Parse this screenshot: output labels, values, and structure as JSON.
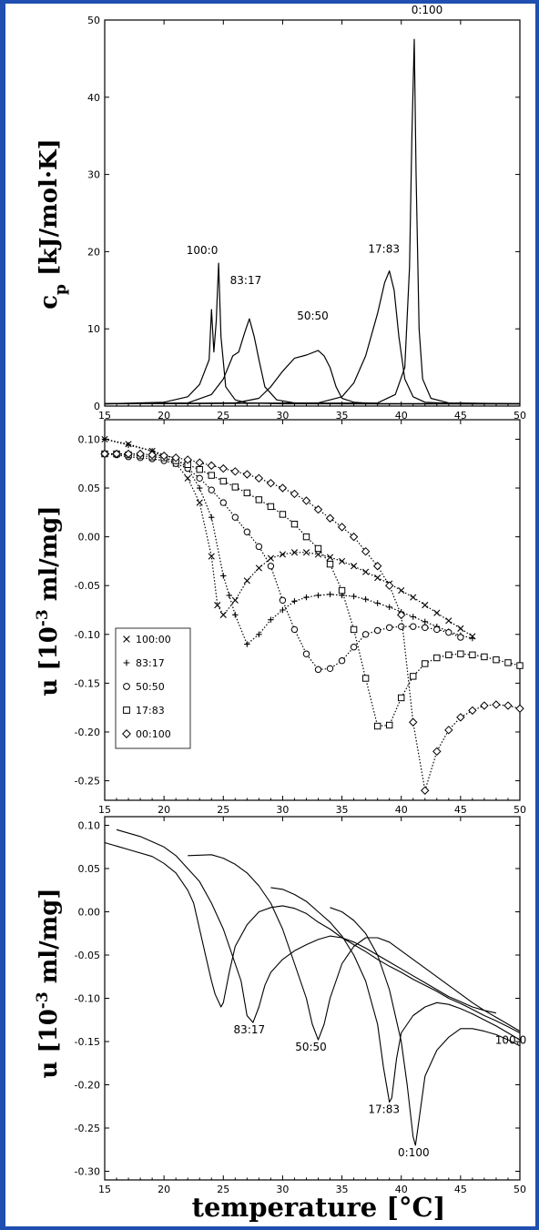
{
  "chart_data": [
    {
      "type": "line",
      "ylabel_main": "c",
      "ylabel_sub": "p",
      "ylabel_rest": " [kJ/mol·K]",
      "xlim": [
        15,
        50
      ],
      "ylim": [
        0,
        50
      ],
      "xticks": [
        "15",
        "20",
        "25",
        "30",
        "35",
        "40",
        "45",
        "50"
      ],
      "yticks": [
        "0",
        "10",
        "20",
        "30",
        "40",
        "50"
      ],
      "series": [
        {
          "name": "100:0",
          "x": [
            15,
            20,
            22,
            23,
            23.8,
            24.0,
            24.2,
            24.4,
            24.6,
            24.8,
            25.2,
            26,
            27,
            30,
            35,
            40,
            50
          ],
          "y": [
            0.3,
            0.5,
            1.2,
            2.8,
            6,
            12.5,
            7,
            11,
            18.5,
            9,
            2.5,
            0.8,
            0.4,
            0.3,
            0.3,
            0.3,
            0.3
          ]
        },
        {
          "name": "83:17",
          "x": [
            15,
            22,
            24,
            25,
            25.8,
            26.3,
            26.8,
            27.2,
            27.6,
            28,
            28.5,
            29.5,
            31,
            35,
            50
          ],
          "y": [
            0.3,
            0.4,
            1.5,
            3.5,
            6.5,
            7,
            9.5,
            11.3,
            9,
            6,
            2.5,
            0.8,
            0.4,
            0.3,
            0.3
          ]
        },
        {
          "name": "50:50",
          "x": [
            15,
            26,
            28,
            29,
            30,
            31,
            32,
            33,
            33.5,
            34,
            34.5,
            35,
            36,
            38,
            50
          ],
          "y": [
            0.3,
            0.4,
            1,
            2.5,
            4.5,
            6.2,
            6.6,
            7.2,
            6.5,
            5,
            2.5,
            1,
            0.5,
            0.3,
            0.3
          ]
        },
        {
          "name": "17:83",
          "x": [
            15,
            33,
            35,
            36,
            37,
            38,
            38.6,
            39,
            39.4,
            39.8,
            40.3,
            41,
            42,
            45,
            50
          ],
          "y": [
            0.3,
            0.4,
            1.2,
            3,
            6.5,
            12,
            16,
            17.5,
            15,
            9,
            3.5,
            1.2,
            0.5,
            0.3,
            0.3
          ]
        },
        {
          "name": "0:100",
          "x": [
            15,
            38,
            39.5,
            40.3,
            40.7,
            40.9,
            41.1,
            41.25,
            41.5,
            41.8,
            42.5,
            44,
            50
          ],
          "y": [
            0.3,
            0.4,
            1.5,
            5,
            18,
            35,
            47.5,
            30,
            10,
            3.5,
            1,
            0.4,
            0.3
          ]
        }
      ],
      "annotations": [
        "100:0",
        "83:17",
        "50:50",
        "17:83",
        "0:100"
      ]
    },
    {
      "type": "line",
      "ylabel_main": "u [10",
      "ylabel_sup": "-3",
      "ylabel_rest": " ml/mg]",
      "xlim": [
        15,
        50
      ],
      "ylim": [
        -0.27,
        0.12
      ],
      "xticks": [
        "15",
        "20",
        "25",
        "30",
        "35",
        "40",
        "45",
        "50"
      ],
      "yticks": [
        "-0.25",
        "-0.20",
        "-0.15",
        "-0.10",
        "-0.05",
        "0.00",
        "0.05",
        "0.10"
      ],
      "legend": "middle-left",
      "series": [
        {
          "name": "100:00",
          "marker": "x",
          "x": [
            15,
            17,
            19,
            21,
            22,
            23,
            24,
            24.5,
            25,
            26,
            27,
            28,
            29,
            30,
            31,
            32,
            33,
            34,
            35,
            36,
            37,
            38,
            39,
            40,
            41,
            42,
            43,
            44,
            45,
            46
          ],
          "y": [
            0.1,
            0.095,
            0.088,
            0.075,
            0.06,
            0.035,
            -0.02,
            -0.07,
            -0.08,
            -0.065,
            -0.045,
            -0.032,
            -0.022,
            -0.018,
            -0.016,
            -0.016,
            -0.018,
            -0.021,
            -0.025,
            -0.03,
            -0.036,
            -0.042,
            -0.048,
            -0.055,
            -0.062,
            -0.07,
            -0.078,
            -0.086,
            -0.094,
            -0.102
          ]
        },
        {
          "name": "83:17",
          "marker": "+",
          "x": [
            15,
            17,
            19,
            21,
            22,
            23,
            24,
            25,
            25.5,
            26,
            27,
            28,
            29,
            30,
            31,
            32,
            33,
            34,
            35,
            36,
            37,
            38,
            39,
            40,
            41,
            42,
            43,
            44,
            45,
            46
          ],
          "y": [
            0.1,
            0.094,
            0.088,
            0.08,
            0.07,
            0.05,
            0.02,
            -0.04,
            -0.06,
            -0.08,
            -0.11,
            -0.1,
            -0.085,
            -0.075,
            -0.066,
            -0.062,
            -0.06,
            -0.059,
            -0.06,
            -0.061,
            -0.064,
            -0.068,
            -0.072,
            -0.077,
            -0.082,
            -0.087,
            -0.092,
            -0.097,
            -0.101,
            -0.104
          ]
        },
        {
          "name": "50:50",
          "marker": "o",
          "x": [
            15,
            16,
            17,
            18,
            19,
            20,
            21,
            22,
            23,
            24,
            25,
            26,
            27,
            28,
            29,
            30,
            31,
            32,
            33,
            34,
            35,
            36,
            37,
            38,
            39,
            40,
            41,
            42,
            43,
            44,
            45
          ],
          "y": [
            0.085,
            0.084,
            0.082,
            0.081,
            0.08,
            0.078,
            0.075,
            0.07,
            0.06,
            0.048,
            0.035,
            0.02,
            0.005,
            -0.01,
            -0.03,
            -0.065,
            -0.095,
            -0.12,
            -0.136,
            -0.135,
            -0.127,
            -0.113,
            -0.1,
            -0.096,
            -0.093,
            -0.092,
            -0.092,
            -0.093,
            -0.095,
            -0.098,
            -0.103
          ]
        },
        {
          "name": "17:83",
          "marker": "s",
          "x": [
            15,
            16,
            17,
            18,
            19,
            20,
            21,
            22,
            23,
            24,
            25,
            26,
            27,
            28,
            29,
            30,
            31,
            32,
            33,
            34,
            35,
            36,
            37,
            38,
            39,
            40,
            41,
            42,
            43,
            44,
            45,
            46,
            47,
            48,
            49,
            50
          ],
          "y": [
            0.085,
            0.085,
            0.084,
            0.083,
            0.082,
            0.081,
            0.078,
            0.074,
            0.069,
            0.063,
            0.057,
            0.051,
            0.045,
            0.038,
            0.031,
            0.023,
            0.013,
            0.0,
            -0.012,
            -0.028,
            -0.055,
            -0.095,
            -0.145,
            -0.194,
            -0.193,
            -0.165,
            -0.143,
            -0.13,
            -0.124,
            -0.121,
            -0.12,
            -0.121,
            -0.123,
            -0.126,
            -0.129,
            -0.132
          ]
        },
        {
          "name": "00:100",
          "marker": "d",
          "x": [
            15,
            16,
            17,
            18,
            19,
            20,
            21,
            22,
            23,
            24,
            25,
            26,
            27,
            28,
            29,
            30,
            31,
            32,
            33,
            34,
            35,
            36,
            37,
            38,
            39,
            40,
            41,
            42,
            43,
            44,
            45,
            46,
            47,
            48,
            49,
            50
          ],
          "y": [
            0.085,
            0.085,
            0.085,
            0.085,
            0.084,
            0.083,
            0.081,
            0.079,
            0.076,
            0.073,
            0.07,
            0.067,
            0.064,
            0.06,
            0.055,
            0.05,
            0.044,
            0.037,
            0.028,
            0.019,
            0.01,
            0.0,
            -0.015,
            -0.03,
            -0.05,
            -0.08,
            -0.19,
            -0.26,
            -0.22,
            -0.198,
            -0.185,
            -0.178,
            -0.173,
            -0.172,
            -0.173,
            -0.176
          ]
        }
      ]
    },
    {
      "type": "line",
      "ylabel_main": "u [10",
      "ylabel_sup": "-3",
      "ylabel_rest": " ml/mg]",
      "xlabel": "temperature [°C]",
      "xlim": [
        15,
        50
      ],
      "ylim": [
        -0.31,
        0.11
      ],
      "xticks": [
        "15",
        "20",
        "25",
        "30",
        "35",
        "40",
        "45",
        "50"
      ],
      "yticks": [
        "-0.30",
        "-0.25",
        "-0.20",
        "-0.15",
        "-0.10",
        "-0.05",
        "0.00",
        "0.05",
        "0.10"
      ],
      "series": [
        {
          "name": "100:0",
          "x": [
            15,
            17,
            19,
            20,
            21,
            22,
            22.5,
            23,
            23.5,
            24,
            24.3,
            24.8,
            25,
            25.5,
            26,
            27,
            28,
            29,
            30,
            31,
            32,
            33,
            34,
            35,
            36,
            37,
            38,
            39,
            40,
            41,
            42,
            43,
            44,
            45,
            46,
            47,
            48,
            49,
            50
          ],
          "y": [
            0.08,
            0.072,
            0.064,
            0.056,
            0.045,
            0.025,
            0.01,
            -0.02,
            -0.05,
            -0.08,
            -0.095,
            -0.11,
            -0.105,
            -0.07,
            -0.04,
            -0.015,
            0.0,
            0.005,
            0.007,
            0.004,
            -0.002,
            -0.012,
            -0.02,
            -0.03,
            -0.038,
            -0.046,
            -0.055,
            -0.063,
            -0.07,
            -0.078,
            -0.085,
            -0.092,
            -0.1,
            -0.106,
            -0.113,
            -0.12,
            -0.126,
            -0.133,
            -0.14
          ]
        },
        {
          "name": "83:17",
          "x": [
            16,
            18,
            20,
            21,
            22,
            23,
            24,
            25,
            26,
            26.5,
            27,
            27.5,
            28,
            28.5,
            29,
            30,
            31,
            32,
            33,
            34,
            35,
            36,
            37,
            38,
            39,
            40,
            41,
            42,
            43,
            44,
            45,
            46,
            47,
            48
          ],
          "y": [
            0.095,
            0.087,
            0.075,
            0.065,
            0.05,
            0.035,
            0.01,
            -0.02,
            -0.06,
            -0.08,
            -0.12,
            -0.128,
            -0.11,
            -0.085,
            -0.07,
            -0.055,
            -0.045,
            -0.038,
            -0.032,
            -0.028,
            -0.03,
            -0.035,
            -0.042,
            -0.05,
            -0.058,
            -0.066,
            -0.074,
            -0.082,
            -0.09,
            -0.098,
            -0.104,
            -0.11,
            -0.114,
            -0.117
          ]
        },
        {
          "name": "50:50",
          "x": [
            22,
            24,
            25,
            26,
            27,
            28,
            29,
            30,
            31,
            32,
            32.5,
            33,
            33.5,
            34,
            35,
            36,
            37,
            38,
            39,
            40,
            41,
            42,
            43,
            44,
            45,
            46,
            47,
            48,
            49,
            50
          ],
          "y": [
            0.065,
            0.066,
            0.062,
            0.055,
            0.045,
            0.03,
            0.01,
            -0.02,
            -0.06,
            -0.1,
            -0.13,
            -0.148,
            -0.13,
            -0.1,
            -0.06,
            -0.04,
            -0.03,
            -0.03,
            -0.035,
            -0.045,
            -0.055,
            -0.065,
            -0.075,
            -0.085,
            -0.095,
            -0.105,
            -0.114,
            -0.122,
            -0.13,
            -0.138
          ]
        },
        {
          "name": "17:83",
          "x": [
            29,
            30,
            31,
            32,
            33,
            34,
            35,
            36,
            37,
            38,
            38.5,
            39,
            39.2,
            39.6,
            40,
            41,
            42,
            43,
            44,
            45,
            46,
            47,
            48,
            49,
            50
          ],
          "y": [
            0.028,
            0.026,
            0.02,
            0.012,
            0.0,
            -0.012,
            -0.028,
            -0.05,
            -0.08,
            -0.13,
            -0.18,
            -0.22,
            -0.215,
            -0.17,
            -0.14,
            -0.12,
            -0.11,
            -0.105,
            -0.107,
            -0.112,
            -0.118,
            -0.125,
            -0.132,
            -0.14,
            -0.148
          ]
        },
        {
          "name": "0:100",
          "x": [
            34,
            35,
            36,
            37,
            38,
            39,
            40,
            40.5,
            41,
            41.2,
            41.5,
            42,
            43,
            44,
            45,
            46,
            47,
            48,
            49,
            50
          ],
          "y": [
            0.005,
            0.0,
            -0.01,
            -0.025,
            -0.05,
            -0.09,
            -0.15,
            -0.2,
            -0.26,
            -0.27,
            -0.24,
            -0.19,
            -0.16,
            -0.145,
            -0.135,
            -0.135,
            -0.138,
            -0.142,
            -0.148,
            -0.155
          ]
        }
      ],
      "annotations": [
        "100:0",
        "83:17",
        "50:50",
        "17:83",
        "0:100"
      ]
    }
  ]
}
